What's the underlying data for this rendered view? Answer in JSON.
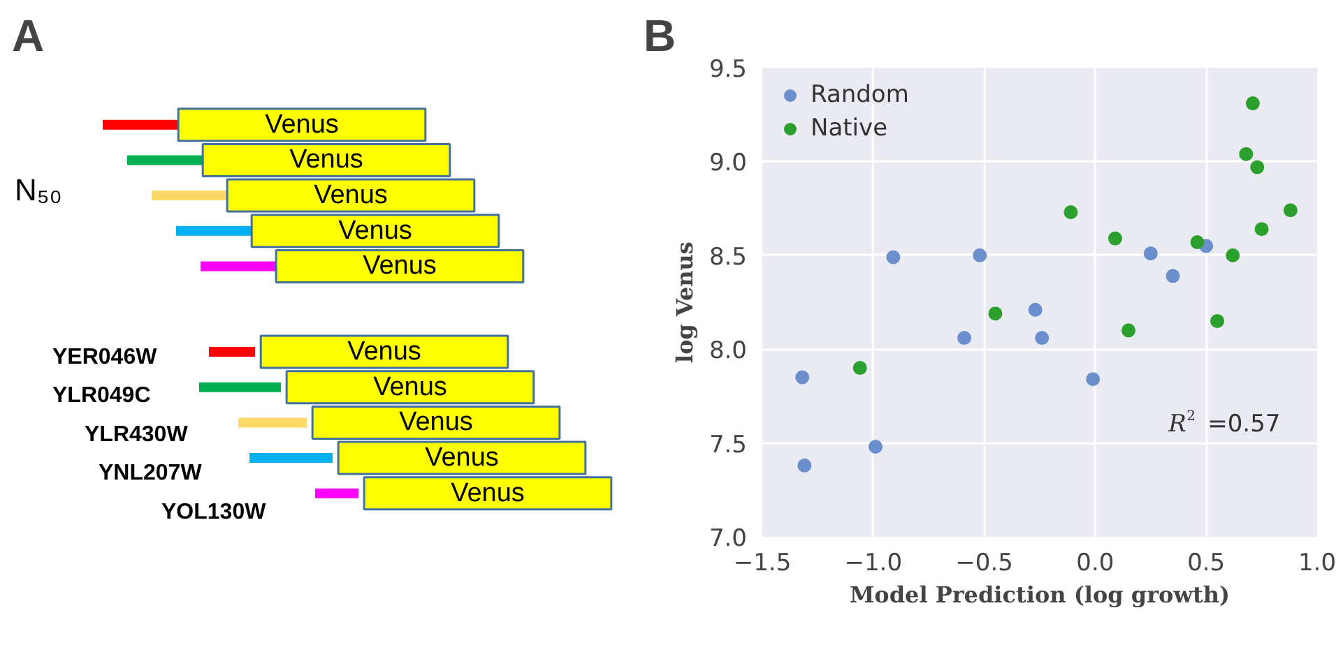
{
  "chart_data": [
    {
      "type": "other",
      "title": "A",
      "annotations": [
        "N₅₀",
        "YER046W",
        "YLR049C",
        "YLR430W",
        "YNL207W",
        "YOL130W",
        "Venus",
        "Venus",
        "Venus",
        "Venus",
        "Venus",
        "Venus",
        "Venus",
        "Venus",
        "Venus",
        "Venus"
      ]
    },
    {
      "type": "scatter",
      "title": "B",
      "xlabel": "Model Prediction (log growth)",
      "ylabel": "log Venus",
      "xlim": [
        -1.5,
        1.0
      ],
      "xticks": [
        {
          "value": -1.5,
          "label": "−1.5"
        },
        {
          "value": -1.0,
          "label": "−1.0"
        },
        {
          "value": -0.5,
          "label": "−0.5"
        },
        {
          "value": 0.0,
          "label": "0.0"
        },
        0.5,
        {
          "value": 1.0,
          "label": "1.0"
        }
      ],
      "ylim": [
        7.0,
        9.5
      ],
      "yticks": [
        {
          "value": 7.0,
          "label": "7.0"
        },
        7.5,
        {
          "value": 8.0,
          "label": "8.0"
        },
        8.5,
        {
          "value": 9.0,
          "label": "9.0"
        },
        9.5
      ],
      "grid": true,
      "legend": "top left",
      "marker": "circle",
      "annotations": [
        "R$^{2}$ =0.57"
      ],
      "series": [
        {
          "name": "Random",
          "color": "#6a8fcc",
          "x": [
            -0.91,
            -0.52,
            -0.59,
            -0.27,
            -0.24,
            0.25,
            0.35,
            0.5,
            -1.32,
            -1.31,
            -0.99,
            -0.01
          ],
          "values": [
            8.49,
            8.5,
            8.06,
            8.21,
            8.06,
            8.51,
            8.39,
            8.55,
            7.85,
            7.38,
            7.48,
            7.84
          ]
        },
        {
          "name": "Native",
          "color": "#2ca02c",
          "x": [
            0.71,
            0.68,
            0.73,
            0.88,
            -0.11,
            0.75,
            0.09,
            0.46,
            0.62,
            -0.45,
            0.55,
            0.15,
            -1.06
          ],
          "values": [
            9.31,
            9.04,
            8.97,
            8.74,
            8.73,
            8.64,
            8.59,
            8.57,
            8.5,
            8.19,
            8.15,
            8.1,
            7.9
          ]
        }
      ]
    }
  ]
}
